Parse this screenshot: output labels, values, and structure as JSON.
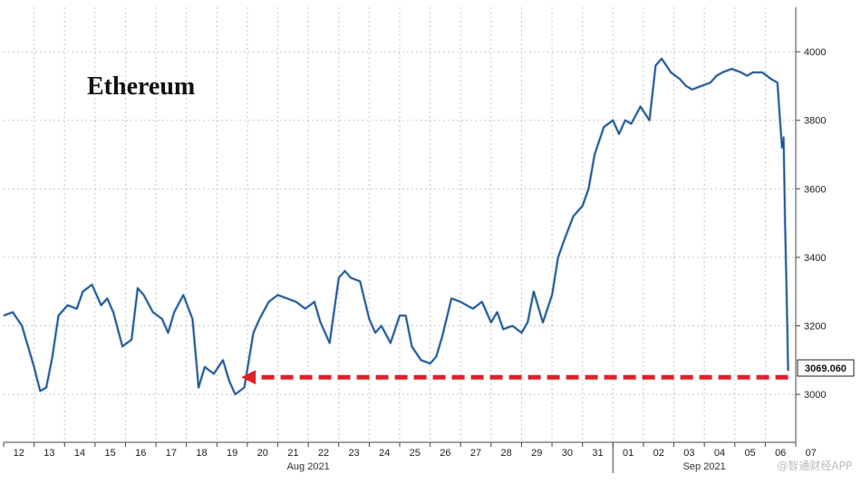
{
  "chart_data": {
    "type": "line",
    "title": "Ethereum",
    "ylim": [
      2860,
      4130
    ],
    "yticks": [
      3000,
      3200,
      3400,
      3600,
      3800,
      4000
    ],
    "x_ticks": [
      "12",
      "13",
      "14",
      "15",
      "16",
      "17",
      "18",
      "19",
      "20",
      "21",
      "22",
      "23",
      "24",
      "25",
      "26",
      "27",
      "28",
      "29",
      "30",
      "31",
      "01",
      "02",
      "03",
      "04",
      "05",
      "06",
      "07"
    ],
    "month_labels": [
      "Aug 2021",
      "Sep 2021"
    ],
    "last_value_label": "3069.060",
    "grid": true,
    "series": [
      {
        "x": [
          11.5,
          11.8,
          12.1,
          12.3,
          12.5,
          12.7,
          12.9,
          13.1,
          13.3,
          13.6,
          13.9,
          14.1,
          14.4,
          14.7,
          14.9,
          15.1,
          15.4,
          15.7,
          15.9,
          16.1,
          16.4,
          16.7,
          16.9,
          17.1,
          17.4,
          17.7,
          17.9,
          18.1,
          18.4,
          18.7,
          18.9,
          19.1,
          19.4,
          19.7,
          19.9,
          20.2,
          20.5,
          20.8,
          21.1,
          21.4,
          21.7,
          21.9,
          22.2,
          22.5,
          22.7,
          22.9,
          23.2,
          23.5,
          23.7,
          23.9,
          24.2,
          24.5,
          24.7,
          24.9,
          25.2,
          25.5,
          25.7,
          25.9,
          26.2,
          26.5,
          26.7,
          26.9,
          27.2,
          27.5,
          27.7,
          27.9,
          28.2,
          28.5,
          28.7,
          28.9,
          29.2,
          29.5,
          29.7,
          29.9,
          30.2,
          30.5,
          30.7,
          30.9,
          31.2,
          31.5,
          31.7,
          31.9,
          32.1,
          32.4,
          32.7,
          32.9,
          33.1,
          33.4,
          33.7,
          33.9,
          34.1,
          34.4,
          34.7,
          34.9,
          35.1,
          35.4,
          35.7,
          35.9,
          36.1,
          36.4,
          36.7,
          36.9,
          37.0,
          37.05,
          37.1,
          37.15,
          37.2,
          37.25
        ],
        "values": [
          3230,
          3240,
          3200,
          3140,
          3080,
          3010,
          3020,
          3110,
          3230,
          3260,
          3250,
          3300,
          3320,
          3260,
          3280,
          3240,
          3140,
          3160,
          3310,
          3290,
          3240,
          3220,
          3180,
          3240,
          3290,
          3220,
          3020,
          3080,
          3060,
          3100,
          3040,
          3000,
          3020,
          3180,
          3220,
          3270,
          3290,
          3280,
          3270,
          3250,
          3270,
          3210,
          3150,
          3340,
          3360,
          3340,
          3330,
          3220,
          3180,
          3200,
          3150,
          3230,
          3230,
          3140,
          3100,
          3090,
          3110,
          3170,
          3280,
          3270,
          3260,
          3250,
          3270,
          3210,
          3240,
          3190,
          3200,
          3180,
          3210,
          3300,
          3210,
          3290,
          3400,
          3450,
          3520,
          3550,
          3600,
          3700,
          3780,
          3800,
          3760,
          3800,
          3790,
          3840,
          3800,
          3960,
          3980,
          3940,
          3920,
          3900,
          3890,
          3900,
          3910,
          3930,
          3940,
          3950,
          3940,
          3930,
          3940,
          3940,
          3920,
          3910,
          3780,
          3720,
          3750,
          3500,
          3300,
          3069
        ]
      }
    ],
    "annotation": {
      "type": "dashed-arrow",
      "color": "#e0202a",
      "level": 3050,
      "from_x": 37.25,
      "to_x": 19.3
    },
    "colors": {
      "line": "#1f4e8a",
      "line_highlight": "#5b9bd5",
      "arrow": "#e0202a",
      "grid": "#c8c8c8"
    }
  },
  "watermark": "@智通财经APP"
}
